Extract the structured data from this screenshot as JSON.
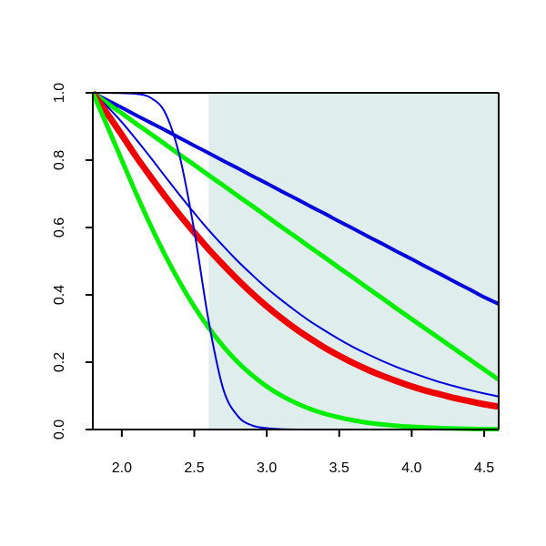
{
  "chart_data": {
    "type": "line",
    "title": "",
    "xlabel": "",
    "ylabel": "",
    "xlim": [
      1.8,
      4.6
    ],
    "ylim": [
      0.0,
      1.0
    ],
    "x_ticks": [
      2.0,
      2.5,
      3.0,
      3.5,
      4.0,
      4.5
    ],
    "x_tick_labels": [
      "2.0",
      "2.5",
      "3.0",
      "3.5",
      "4.0",
      "4.5"
    ],
    "y_ticks": [
      0.0,
      0.2,
      0.4,
      0.6,
      0.8,
      1.0
    ],
    "y_tick_labels": [
      "0.0",
      "0.2",
      "0.4",
      "0.6",
      "0.8",
      "1.0"
    ],
    "grid": false,
    "legend": "none",
    "shaded_region": {
      "x_from": 2.6,
      "x_to": 4.6,
      "color": "#e0eded"
    },
    "x": [
      1.8,
      1.9,
      2.0,
      2.1,
      2.2,
      2.3,
      2.4,
      2.5,
      2.6,
      2.7,
      2.8,
      2.9,
      3.0,
      3.1,
      3.2,
      3.3,
      3.4,
      3.5,
      3.6,
      3.7,
      3.8,
      3.9,
      4.0,
      4.1,
      4.2,
      4.3,
      4.4,
      4.5,
      4.6
    ],
    "series": [
      {
        "color": "#0000dd",
        "width": 4,
        "values": [
          1.0,
          0.978,
          0.956,
          0.933,
          0.911,
          0.889,
          0.866,
          0.843,
          0.821,
          0.798,
          0.776,
          0.753,
          0.731,
          0.708,
          0.686,
          0.663,
          0.641,
          0.618,
          0.596,
          0.573,
          0.551,
          0.528,
          0.506,
          0.483,
          0.461,
          0.438,
          0.416,
          0.393,
          0.373
        ]
      },
      {
        "color": "#00ee00",
        "width": 5,
        "values": [
          1.0,
          0.969,
          0.939,
          0.908,
          0.878,
          0.847,
          0.816,
          0.786,
          0.755,
          0.725,
          0.694,
          0.664,
          0.633,
          0.602,
          0.572,
          0.541,
          0.511,
          0.48,
          0.45,
          0.419,
          0.389,
          0.358,
          0.328,
          0.298,
          0.268,
          0.238,
          0.208,
          0.178,
          0.148
        ]
      },
      {
        "color": "#0000dd",
        "width": 2,
        "values": [
          1.0,
          0.959,
          0.913,
          0.861,
          0.807,
          0.751,
          0.696,
          0.643,
          0.592,
          0.545,
          0.5,
          0.459,
          0.42,
          0.385,
          0.352,
          0.321,
          0.294,
          0.268,
          0.244,
          0.223,
          0.203,
          0.185,
          0.169,
          0.154,
          0.14,
          0.128,
          0.117,
          0.107,
          0.098
        ]
      },
      {
        "color": "#ee0000",
        "width": 7,
        "values": [
          1.0,
          0.938,
          0.875,
          0.81,
          0.75,
          0.692,
          0.637,
          0.585,
          0.535,
          0.489,
          0.445,
          0.404,
          0.366,
          0.331,
          0.299,
          0.27,
          0.243,
          0.219,
          0.197,
          0.177,
          0.159,
          0.143,
          0.128,
          0.115,
          0.104,
          0.093,
          0.084,
          0.075,
          0.068
        ]
      },
      {
        "color": "#00ee00",
        "width": 5,
        "values": [
          1.0,
          0.901,
          0.8,
          0.7,
          0.605,
          0.517,
          0.437,
          0.365,
          0.302,
          0.247,
          0.2,
          0.161,
          0.128,
          0.101,
          0.079,
          0.061,
          0.047,
          0.036,
          0.027,
          0.02,
          0.015,
          0.011,
          0.008,
          0.006,
          0.004,
          0.003,
          0.002,
          0.001,
          0.001
        ]
      },
      {
        "color": "#0000dd",
        "width": 2,
        "values": [
          1.0,
          1.0,
          0.999,
          0.997,
          0.985,
          0.94,
          0.81,
          0.59,
          0.32,
          0.12,
          0.04,
          0.012,
          0.004,
          0.001,
          0.0,
          0.0,
          0.0,
          0.0,
          0.0,
          0.0,
          0.0,
          0.0,
          0.0,
          0.0,
          0.0,
          0.0,
          0.0,
          0.0,
          0.0
        ]
      }
    ]
  }
}
